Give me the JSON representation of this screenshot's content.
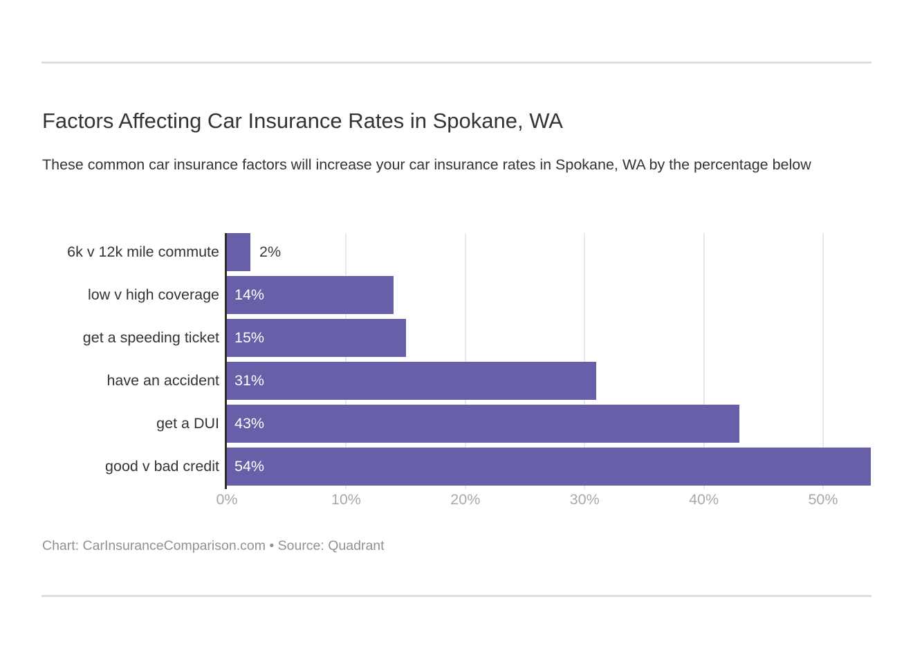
{
  "header": {
    "title": "Factors Affecting Car Insurance Rates in Spokane, WA",
    "subtitle": "These common car insurance factors will increase your car insurance rates in Spokane, WA by the percentage below"
  },
  "chart_data": {
    "type": "bar",
    "orientation": "horizontal",
    "title": "Factors Affecting Car Insurance Rates in Spokane, WA",
    "subtitle": "These common car insurance factors will increase your car insurance rates in Spokane, WA by the percentage below",
    "categories": [
      "6k v 12k mile commute",
      "low v high coverage",
      "get a speeding ticket",
      "have an accident",
      "get a DUI",
      "good v bad credit"
    ],
    "values": [
      2,
      14,
      15,
      31,
      43,
      54
    ],
    "value_labels": [
      "2%",
      "14%",
      "15%",
      "31%",
      "43%",
      "54%"
    ],
    "xlabel": "",
    "ylabel": "",
    "xlim": [
      0,
      54
    ],
    "x_ticks": [
      {
        "value": 0,
        "label": "0%"
      },
      {
        "value": 10,
        "label": "10%"
      },
      {
        "value": 20,
        "label": "20%"
      },
      {
        "value": 30,
        "label": "30%"
      },
      {
        "value": 40,
        "label": "40%"
      },
      {
        "value": 50,
        "label": "50%"
      }
    ],
    "grid": true,
    "legend": "none"
  },
  "footer": {
    "credit": "Chart: CarInsuranceComparison.com • Source: Quadrant"
  },
  "colors": {
    "bar": "#675FA7",
    "axis_line": "#2D2D2D",
    "gridline": "#E9E9E9",
    "divider": "#DEDEDE",
    "text_dark": "#333333",
    "tick_label": "#A9A9A9",
    "credit_text": "#919191",
    "value_label_inside": "#FFFFFF",
    "value_label_outside": "#3A3A3A",
    "background": "#FFFFFF"
  }
}
